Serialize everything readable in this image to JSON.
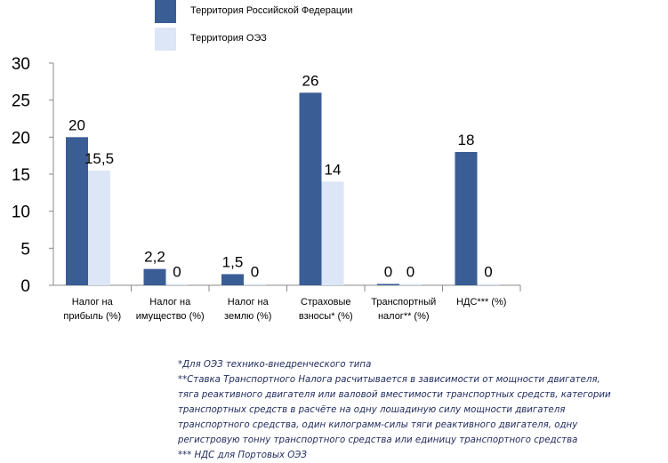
{
  "legend": [
    {
      "label": "Территория Российской Федерации",
      "color": "#3a5d96"
    },
    {
      "label": "Территория ОЭЗ",
      "color": "#dde6f7"
    }
  ],
  "chart_data": {
    "type": "bar",
    "categories": [
      [
        "Налог на",
        "прибыль (%)"
      ],
      [
        "Налог на",
        "имущество (%)"
      ],
      [
        "Налог на",
        "землю (%)"
      ],
      [
        "Страховые",
        "взносы* (%)"
      ],
      [
        "Транспортный",
        "налог** (%)"
      ],
      [
        "НДС*** (%)"
      ]
    ],
    "series": [
      {
        "name": "Территория Российской Федерации",
        "color": "#3a5d96",
        "values": [
          20,
          2.2,
          1.5,
          26,
          0,
          18
        ],
        "labels": [
          "20",
          "2,2",
          "1,5",
          "26",
          "0",
          "18"
        ]
      },
      {
        "name": "Территория ОЭЗ",
        "color": "#dde6f7",
        "values": [
          15.5,
          0,
          0,
          14,
          0,
          0
        ],
        "labels": [
          "15,5",
          "0",
          "0",
          "14",
          "0",
          "0"
        ]
      }
    ],
    "y_ticks": [
      "0",
      "5",
      "10",
      "15",
      "20",
      "25",
      "30"
    ],
    "ylim": [
      0,
      30
    ],
    "grid": false,
    "legend_position": "top"
  },
  "footnotes": [
    "*Для ОЭЗ технико-внедренческого  типа",
    "**Ставка Транспортного Налога расчитывается  в зависимости от мощности двигателя,",
    "тяга реактивного двигателя  или валовой вместимости  транспортных средств, категории",
    "транспортных средств  в  расчёте на одну лошадиную силу мощности двигателя",
    "транспортного средства,  один килограмм-силы тяги реактивного двигателя,  одну",
    "регистровую тонну транспортного средства  или единицу транспортного средства",
    "*** НДС для Портовых ОЭЗ"
  ]
}
